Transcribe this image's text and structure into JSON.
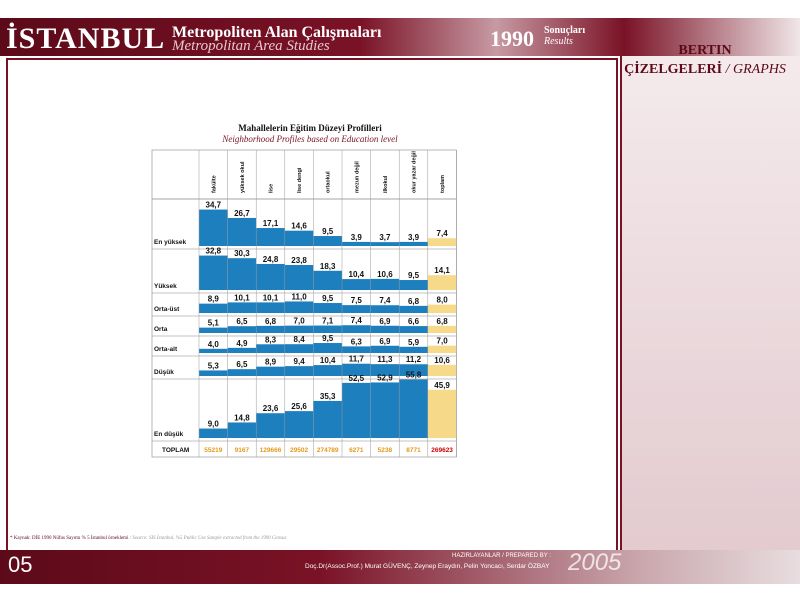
{
  "header": {
    "title": "İSTANBUL",
    "subtitle_tr": "Metropoliten Alan Çalışmaları",
    "subtitle_en": "Metropolitan Area Studies",
    "year": "1990",
    "results_tr": "Sonuçları",
    "results_en": "Results"
  },
  "side_panel": {
    "title1": "BERTIN",
    "title2_tr": "ÇİZELGELERİ",
    "title2_sep": " / ",
    "title2_en": "GRAPHS"
  },
  "source": {
    "tr": "* Kaynak: DİE 1990 Nüfus Sayımı % 5 İstanbul örneklemi",
    "sep": " / ",
    "en": "Source: SIS İstanbul, %5 Public Use Sample extracted from the 1990 Census"
  },
  "footer": {
    "page": "05",
    "prepared_label": "HAZIRLAYANLAR / PREPARED BY :",
    "prepared_by": "Doç.Dr(Assoc.Prof.) Murat GÜVENÇ, Zeynep Eraydın, Pelin Yoncacı, Serdar ÖZBAY",
    "year": "2005"
  },
  "colors": {
    "bar": "#1e7fbf",
    "total_col": "#f7d98a",
    "total_text": "#e39a1a",
    "total_grand": "#cc0000",
    "accent": "#7a1226"
  },
  "chart_data": {
    "type": "table",
    "title": "Mahallelerin Eğitim Düzeyi Profilleri",
    "subtitle": "Neighborhood Profiles based on Education level",
    "columns": [
      "fakülte",
      "yüksek okul",
      "lise",
      "lise dengi",
      "ortaokul",
      "mezun değil",
      "ilkokul",
      "okur yazar değil",
      "toplam"
    ],
    "rows": [
      {
        "label": "En yüksek",
        "values": [
          34.7,
          26.7,
          17.1,
          14.6,
          9.5,
          3.9,
          3.7,
          3.9,
          7.4
        ],
        "display": [
          "34,7",
          "26,7",
          "17,1",
          "14,6",
          "9,5",
          "3,9",
          "3,7",
          "3,9",
          "7,4"
        ]
      },
      {
        "label": "Yüksek",
        "values": [
          32.8,
          30.3,
          24.8,
          23.8,
          18.3,
          10.4,
          10.6,
          9.5,
          14.1
        ],
        "display": [
          "32,8",
          "30,3",
          "24,8",
          "23,8",
          "18,3",
          "10,4",
          "10,6",
          "9,5",
          "14,1"
        ]
      },
      {
        "label": "Orta-üst",
        "values": [
          8.9,
          10.1,
          10.1,
          11.0,
          9.5,
          7.5,
          7.4,
          6.8,
          8.0
        ],
        "display": [
          "8,9",
          "10,1",
          "10,1",
          "11,0",
          "9,5",
          "7,5",
          "7,4",
          "6,8",
          "8,0"
        ]
      },
      {
        "label": "Orta",
        "values": [
          5.1,
          6.5,
          6.8,
          7.0,
          7.1,
          7.4,
          6.9,
          6.6,
          6.8
        ],
        "display": [
          "5,1",
          "6,5",
          "6,8",
          "7,0",
          "7,1",
          "7,4",
          "6,9",
          "6,6",
          "6,8"
        ]
      },
      {
        "label": "Orta-alt",
        "values": [
          4.0,
          4.9,
          8.3,
          8.4,
          9.5,
          6.3,
          6.9,
          5.9,
          7.0
        ],
        "display": [
          "4,0",
          "4,9",
          "8,3",
          "8,4",
          "9,5",
          "6,3",
          "6,9",
          "5,9",
          "7,0"
        ]
      },
      {
        "label": "Düşük",
        "values": [
          5.3,
          6.5,
          8.9,
          9.4,
          10.4,
          11.7,
          11.3,
          11.2,
          10.6
        ],
        "display": [
          "5,3",
          "6,5",
          "8,9",
          "9,4",
          "10,4",
          "11,7",
          "11,3",
          "11,2",
          "10,6"
        ]
      },
      {
        "label": "En düşük",
        "values": [
          9.0,
          14.8,
          23.6,
          25.6,
          35.3,
          52.5,
          52.9,
          55.8,
          45.9
        ],
        "display": [
          "9,0",
          "14,8",
          "23,6",
          "25,6",
          "35,3",
          "52,5",
          "52,9",
          "55,8",
          "45,9"
        ]
      }
    ],
    "totals_label": "TOPLAM",
    "totals": [
      "55219",
      "9167",
      "129666",
      "29502",
      "274789",
      "6271",
      "5238",
      "8771",
      "269623"
    ]
  }
}
